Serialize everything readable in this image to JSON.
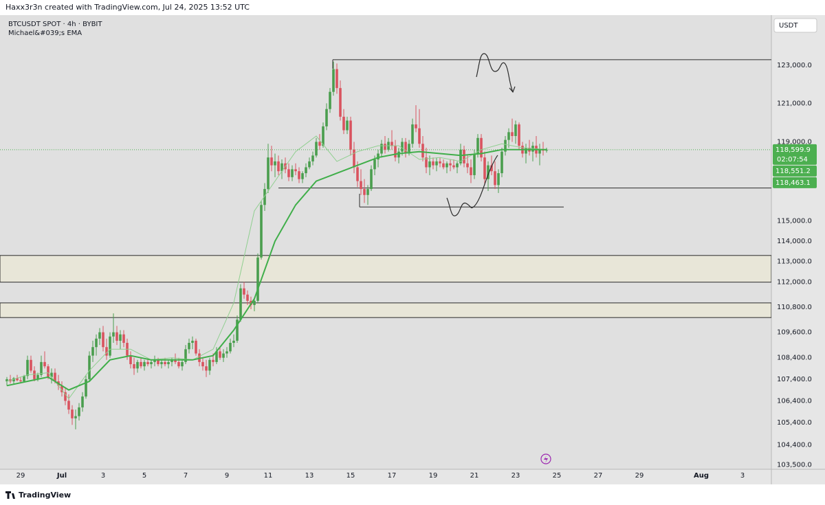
{
  "header": "Haxx3r3n created with TradingView.com, Jul 24, 2025 13:52 UTC",
  "footer": "TradingView",
  "chart_data": {
    "type": "candlestick",
    "title": "BTCUSDT SPOT · 4h · BYBIT",
    "indicator": "Michael&#039;s EMA",
    "currency": "USDT",
    "log_scale": true,
    "up_color": "#4a9e4e",
    "down_color": "#d9535f",
    "ylim": [
      103300,
      125700
    ],
    "yticks": [
      {
        "value": 123000,
        "label": "123,000.0"
      },
      {
        "value": 121000,
        "label": "121,000.0"
      },
      {
        "value": 119000,
        "label": "119,000.0"
      },
      {
        "value": 115000,
        "label": "115,000.0"
      },
      {
        "value": 114000,
        "label": "114,000.0"
      },
      {
        "value": 113000,
        "label": "113,000.0"
      },
      {
        "value": 112000,
        "label": "112,000.0"
      },
      {
        "value": 110800,
        "label": "110,800.0"
      },
      {
        "value": 109600,
        "label": "109,600.0"
      },
      {
        "value": 108400,
        "label": "108,400.0"
      },
      {
        "value": 107400,
        "label": "107,400.0"
      },
      {
        "value": 106400,
        "label": "106,400.0"
      },
      {
        "value": 105400,
        "label": "105,400.0"
      },
      {
        "value": 104400,
        "label": "104,400.0"
      },
      {
        "value": 103500,
        "label": "103,500.0"
      }
    ],
    "xlim": [
      -2,
      222.4
    ],
    "xticks": [
      {
        "value": 4,
        "label": "29"
      },
      {
        "value": 16,
        "label": "Jul"
      },
      {
        "value": 28,
        "label": "3"
      },
      {
        "value": 40,
        "label": "5"
      },
      {
        "value": 52,
        "label": "7"
      },
      {
        "value": 64,
        "label": "9"
      },
      {
        "value": 76,
        "label": "11"
      },
      {
        "value": 88,
        "label": "13"
      },
      {
        "value": 100,
        "label": "15"
      },
      {
        "value": 112,
        "label": "17"
      },
      {
        "value": 124,
        "label": "19"
      },
      {
        "value": 136,
        "label": "21"
      },
      {
        "value": 148,
        "label": "23"
      },
      {
        "value": 160,
        "label": "25"
      },
      {
        "value": 172,
        "label": "27"
      },
      {
        "value": 184,
        "label": "29"
      },
      {
        "value": 202,
        "label": "Aug"
      },
      {
        "value": 214,
        "label": "3"
      }
    ],
    "ohlc": [
      [
        107300,
        107500,
        107100,
        107400
      ],
      [
        107400,
        107600,
        107200,
        107300
      ],
      [
        107300,
        107500,
        107150,
        107450
      ],
      [
        107450,
        107600,
        107300,
        107350
      ],
      [
        107350,
        107500,
        107200,
        107300
      ],
      [
        107300,
        107600,
        107250,
        107550
      ],
      [
        107550,
        108500,
        107400,
        108300
      ],
      [
        108300,
        108500,
        107700,
        107800
      ],
      [
        107800,
        108000,
        107300,
        107400
      ],
      [
        107400,
        107700,
        107300,
        107600
      ],
      [
        107600,
        108500,
        107500,
        108200
      ],
      [
        108200,
        108700,
        107900,
        108000
      ],
      [
        108000,
        108100,
        107400,
        107500
      ],
      [
        107500,
        107900,
        107200,
        107700
      ],
      [
        107700,
        107900,
        107200,
        107300
      ],
      [
        107300,
        107600,
        106900,
        107100
      ],
      [
        107100,
        107300,
        106600,
        106800
      ],
      [
        106800,
        107000,
        106200,
        106400
      ],
      [
        106400,
        106700,
        105800,
        106000
      ],
      [
        106000,
        106200,
        105300,
        105600
      ],
      [
        105600,
        106000,
        105100,
        105700
      ],
      [
        105700,
        106300,
        105500,
        106100
      ],
      [
        106100,
        106800,
        105900,
        106600
      ],
      [
        106600,
        107600,
        106500,
        107400
      ],
      [
        107400,
        108700,
        107300,
        108500
      ],
      [
        108500,
        109200,
        108200,
        108900
      ],
      [
        108900,
        109500,
        108500,
        109300
      ],
      [
        109300,
        109800,
        109000,
        109600
      ],
      [
        109600,
        109900,
        108700,
        108900
      ],
      [
        108900,
        109300,
        108300,
        108500
      ],
      [
        108500,
        109600,
        108400,
        109400
      ],
      [
        109400,
        110500,
        109100,
        109600
      ],
      [
        109600,
        109900,
        109000,
        109200
      ],
      [
        109200,
        109700,
        108800,
        109500
      ],
      [
        109500,
        109700,
        108900,
        109100
      ],
      [
        109100,
        109300,
        108300,
        108500
      ],
      [
        108500,
        108700,
        107900,
        108100
      ],
      [
        108100,
        108400,
        107600,
        107900
      ],
      [
        107900,
        108300,
        107700,
        108200
      ],
      [
        108200,
        108400,
        107900,
        108000
      ],
      [
        108000,
        108300,
        107800,
        108200
      ],
      [
        108200,
        108400,
        108000,
        108100
      ],
      [
        108100,
        108300,
        107900,
        108200
      ],
      [
        108200,
        108500,
        108000,
        108300
      ],
      [
        108300,
        108400,
        108000,
        108100
      ],
      [
        108100,
        108300,
        107900,
        108200
      ],
      [
        108200,
        108400,
        108000,
        108100
      ],
      [
        108100,
        108300,
        107900,
        108200
      ],
      [
        108200,
        108400,
        108000,
        108300
      ],
      [
        108300,
        108600,
        108100,
        108200
      ],
      [
        108200,
        108400,
        107900,
        108000
      ],
      [
        108000,
        108300,
        107800,
        108200
      ],
      [
        108200,
        109000,
        108100,
        108800
      ],
      [
        108800,
        109300,
        108600,
        109100
      ],
      [
        109100,
        109400,
        108800,
        109200
      ],
      [
        109200,
        109300,
        108500,
        108600
      ],
      [
        108600,
        108800,
        108000,
        108200
      ],
      [
        108200,
        108400,
        107800,
        108000
      ],
      [
        108000,
        108300,
        107500,
        107800
      ],
      [
        107800,
        108400,
        107600,
        108300
      ],
      [
        108300,
        108600,
        108000,
        108200
      ],
      [
        108200,
        108900,
        108100,
        108700
      ],
      [
        108700,
        108900,
        108300,
        108400
      ],
      [
        108400,
        108800,
        108200,
        108600
      ],
      [
        108600,
        108900,
        108400,
        108700
      ],
      [
        108700,
        109300,
        108600,
        109100
      ],
      [
        109100,
        109500,
        108900,
        109200
      ],
      [
        109200,
        110400,
        109100,
        110200
      ],
      [
        110200,
        111900,
        110100,
        111700
      ],
      [
        111700,
        112000,
        111200,
        111400
      ],
      [
        111400,
        111600,
        110900,
        111100
      ],
      [
        111100,
        111300,
        110700,
        110900
      ],
      [
        110900,
        111200,
        110600,
        111100
      ],
      [
        111100,
        113400,
        111000,
        113200
      ],
      [
        113200,
        116000,
        113100,
        115800
      ],
      [
        115800,
        116900,
        115500,
        116600
      ],
      [
        116600,
        118900,
        116400,
        118200
      ],
      [
        118200,
        118800,
        117500,
        117800
      ],
      [
        117800,
        118400,
        117200,
        118000
      ],
      [
        118000,
        118300,
        117300,
        117500
      ],
      [
        117500,
        118100,
        117100,
        117900
      ],
      [
        117900,
        118200,
        117400,
        117600
      ],
      [
        117600,
        117900,
        117000,
        117200
      ],
      [
        117200,
        117800,
        117000,
        117600
      ],
      [
        117600,
        117900,
        117300,
        117500
      ],
      [
        117500,
        117700,
        116900,
        117100
      ],
      [
        117100,
        117500,
        116900,
        117400
      ],
      [
        117400,
        117900,
        117200,
        117700
      ],
      [
        117700,
        118200,
        117600,
        118000
      ],
      [
        118000,
        118500,
        117800,
        118300
      ],
      [
        118300,
        119200,
        118200,
        119000
      ],
      [
        119000,
        119400,
        118600,
        118800
      ],
      [
        118800,
        120000,
        118700,
        119800
      ],
      [
        119800,
        121000,
        119600,
        120700
      ],
      [
        120700,
        121800,
        120500,
        121600
      ],
      [
        121600,
        123200,
        121400,
        122800
      ],
      [
        122800,
        123100,
        121500,
        121800
      ],
      [
        121800,
        122200,
        120100,
        120300
      ],
      [
        120300,
        120700,
        119400,
        119600
      ],
      [
        119600,
        120300,
        119400,
        120100
      ],
      [
        120100,
        120300,
        118300,
        118600
      ],
      [
        118600,
        119000,
        117400,
        117700
      ],
      [
        117700,
        118000,
        116700,
        117000
      ],
      [
        117000,
        117600,
        116300,
        116600
      ],
      [
        116600,
        117100,
        115900,
        116300
      ],
      [
        116300,
        116800,
        115800,
        116600
      ],
      [
        116600,
        117800,
        116500,
        117600
      ],
      [
        117600,
        118300,
        117300,
        118100
      ],
      [
        118100,
        118600,
        117700,
        118400
      ],
      [
        118400,
        119100,
        118200,
        118900
      ],
      [
        118900,
        119300,
        118400,
        118600
      ],
      [
        118600,
        119200,
        118500,
        119000
      ],
      [
        119000,
        119600,
        118600,
        118800
      ],
      [
        118800,
        119100,
        118000,
        118200
      ],
      [
        118200,
        118700,
        117900,
        118500
      ],
      [
        118500,
        119200,
        118300,
        119000
      ],
      [
        119000,
        119200,
        118200,
        118400
      ],
      [
        118400,
        119100,
        118300,
        118900
      ],
      [
        118900,
        120200,
        118700,
        119900
      ],
      [
        119900,
        120900,
        119500,
        119700
      ],
      [
        119700,
        120700,
        118700,
        118900
      ],
      [
        118900,
        119300,
        118000,
        118200
      ],
      [
        118200,
        118700,
        117400,
        117700
      ],
      [
        117700,
        118300,
        117300,
        118000
      ],
      [
        118000,
        118200,
        117600,
        117800
      ],
      [
        117800,
        118200,
        117500,
        118000
      ],
      [
        118000,
        118200,
        117700,
        117900
      ],
      [
        117900,
        118100,
        117600,
        117700
      ],
      [
        117700,
        118000,
        117400,
        117900
      ],
      [
        117900,
        118100,
        117500,
        117800
      ],
      [
        117800,
        118100,
        117600,
        117700
      ],
      [
        117700,
        118000,
        117400,
        117900
      ],
      [
        117900,
        118900,
        117800,
        118600
      ],
      [
        118600,
        118800,
        117700,
        117900
      ],
      [
        117900,
        118300,
        117400,
        117700
      ],
      [
        117700,
        118100,
        116900,
        117300
      ],
      [
        117300,
        118600,
        117100,
        118400
      ],
      [
        118400,
        119400,
        118200,
        119200
      ],
      [
        119200,
        119400,
        118000,
        118200
      ],
      [
        118200,
        118500,
        116800,
        117100
      ],
      [
        117100,
        118000,
        116500,
        117800
      ],
      [
        117800,
        118300,
        117300,
        117500
      ],
      [
        117500,
        118000,
        116600,
        116800
      ],
      [
        116800,
        117600,
        116400,
        117400
      ],
      [
        117400,
        118700,
        117200,
        118500
      ],
      [
        118500,
        119300,
        118300,
        119100
      ],
      [
        119100,
        119700,
        118700,
        119500
      ],
      [
        119500,
        120200,
        119000,
        119300
      ],
      [
        119300,
        120100,
        118900,
        119900
      ],
      [
        119900,
        120000,
        118600,
        118800
      ],
      [
        118800,
        119000,
        118200,
        118400
      ],
      [
        118400,
        118900,
        117900,
        118700
      ],
      [
        118700,
        119100,
        118300,
        118500
      ],
      [
        118500,
        119000,
        118000,
        118800
      ],
      [
        118800,
        119300,
        118200,
        118400
      ],
      [
        118400,
        118900,
        117800,
        118600
      ],
      [
        118600,
        119000,
        118300,
        118550
      ],
      [
        118550,
        118700,
        118450,
        118600
      ]
    ],
    "ema": [
      {
        "color": "#8fcf8f",
        "x": [
          0,
          6,
          12,
          18,
          24,
          30,
          36,
          42,
          48,
          54,
          60,
          66,
          72,
          78,
          84,
          90,
          96,
          102,
          108,
          114,
          120,
          126,
          132,
          138,
          144,
          150,
          157
        ],
        "values": [
          107300,
          107600,
          107700,
          106500,
          107800,
          108800,
          108800,
          108300,
          108400,
          108300,
          108800,
          111000,
          115500,
          117000,
          118500,
          119300,
          118000,
          118500,
          118800,
          118800,
          118100,
          118200,
          118000,
          118600,
          118900,
          118700,
          118600
        ]
      },
      {
        "color": "#3fae49",
        "x": [
          0,
          6,
          12,
          18,
          24,
          30,
          36,
          42,
          48,
          54,
          60,
          66,
          72,
          78,
          84,
          90,
          96,
          102,
          108,
          114,
          120,
          126,
          132,
          138,
          144,
          150,
          157
        ],
        "values": [
          107100,
          107300,
          107500,
          106900,
          107300,
          108300,
          108500,
          108300,
          108300,
          108300,
          108500,
          109700,
          111200,
          114000,
          115800,
          117000,
          117400,
          117800,
          118200,
          118400,
          118500,
          118400,
          118300,
          118400,
          118600,
          118600,
          118600
        ]
      }
    ],
    "levels": [
      123300,
      116650,
      115700
    ],
    "zones": [
      [
        112000,
        113300
      ],
      [
        110300,
        111000
      ]
    ],
    "price_labels": [
      {
        "value": 118599.9,
        "label": "118,599.9"
      },
      {
        "value": 118551.2,
        "label": "118,551.2"
      },
      {
        "value": 118463.1,
        "label": "118,463.1"
      }
    ],
    "countdown": "02:07:54"
  }
}
